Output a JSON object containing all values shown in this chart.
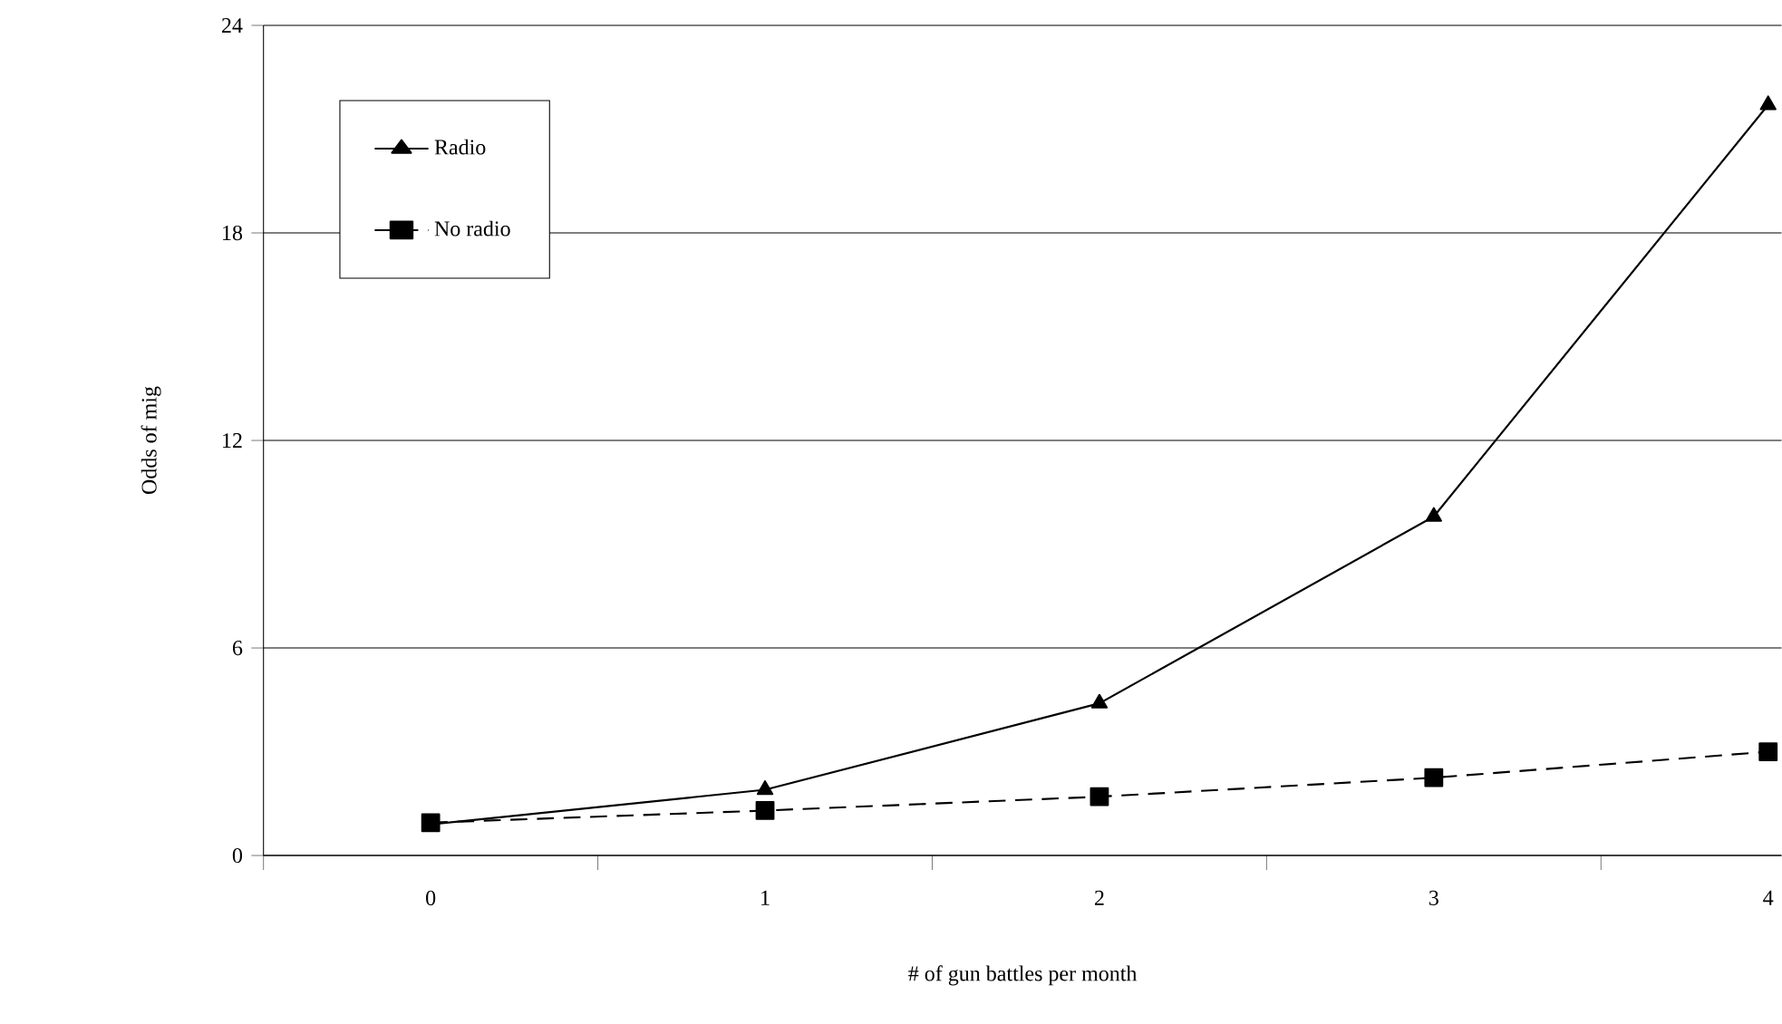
{
  "chart_data": {
    "type": "line",
    "xlabel": "# of gun battles per month",
    "ylabel": "Odds of mig",
    "categories": [
      "0",
      "1",
      "2",
      "3",
      "4"
    ],
    "series": [
      {
        "name": "Radio",
        "color": "#000000",
        "marker": "triangle",
        "line_style": "solid",
        "values": [
          0.9,
          1.9,
          4.4,
          9.8,
          21.7
        ]
      },
      {
        "name": "No radio",
        "color": "#000000",
        "marker": "square",
        "line_style": "dashed",
        "values": [
          0.95,
          1.3,
          1.7,
          2.25,
          3.0
        ]
      }
    ],
    "ylim": [
      0,
      24
    ],
    "yticks": [
      0,
      6,
      12,
      18,
      24
    ],
    "grid": "y",
    "legend": "top left"
  }
}
